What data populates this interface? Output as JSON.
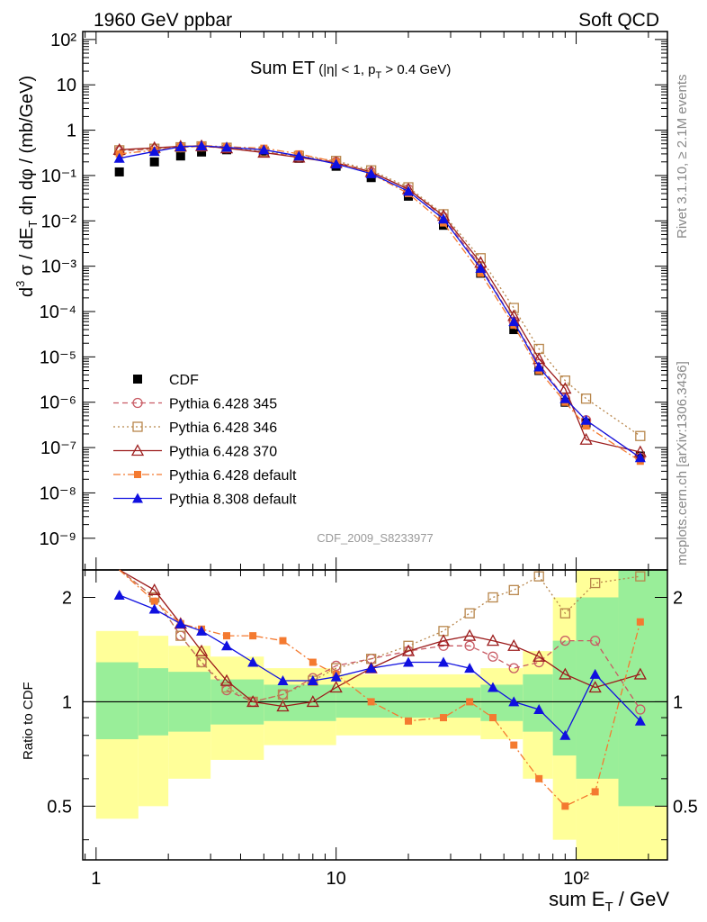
{
  "header": {
    "energy": "1960 GeV ppbar",
    "process": "Soft QCD"
  },
  "side_labels": {
    "rivet": "Rivet 3.1.10, ≥ 2.1M events",
    "mcplots": "mcplots.cern.ch [arXiv:1306.3436]"
  },
  "watermark": "CDF_2009_S8233977",
  "chart_data": [
    {
      "type": "scatter",
      "panel": "main",
      "title": "Sum ET (|η| < 1, pT > 0.4 GeV)",
      "title_main": "Sum ET",
      "title_sub": "(|η| < 1, p",
      "title_sub_index": "T",
      "title_sub_tail": " > 0.4 GeV)",
      "ylabel": "d³σ / dE_T dη dφ / (mb/GeV)",
      "ylabel_parts": {
        "d": "d",
        "exp": "3",
        "sigma": " σ / dE",
        "sub": "T",
        "rest": " dη dφ / (mb/GeV)"
      },
      "xlabel": "sum E_T / GeV",
      "xlabel_parts": {
        "main": "sum E",
        "sub": "T",
        "rest": " / GeV"
      },
      "x_scale": "log",
      "y_scale": "log",
      "xlim": [
        0.88,
        240
      ],
      "ylim": [
        2e-10,
        150
      ],
      "x_tick_labels": [
        "1",
        "10",
        "10²"
      ],
      "y_tick_labels": [
        "10⁻⁹",
        "10⁻⁸",
        "10⁻⁷",
        "10⁻⁶",
        "10⁻⁵",
        "10⁻⁴",
        "10⁻³",
        "10⁻²",
        "10⁻¹",
        "1",
        "10",
        "10²"
      ],
      "legend_position": "bottom-left",
      "series": [
        {
          "name": "CDF",
          "color": "#000000",
          "marker": "square-filled",
          "line": "none",
          "x": [
            1.25,
            1.75,
            2.25,
            2.75,
            3.5,
            5,
            7,
            10,
            14,
            20,
            28,
            40,
            55,
            70,
            90,
            110,
            185
          ],
          "y": [
            0.12,
            0.2,
            0.27,
            0.33,
            0.37,
            0.33,
            0.24,
            0.16,
            0.09,
            0.035,
            0.008,
            0.0007,
            4e-05,
            5e-06,
            1e-06,
            3.5e-07,
            6.5e-08
          ]
        },
        {
          "name": "Pythia 6.428 345",
          "color": "#c85a63",
          "marker": "circle-open",
          "line": "dashed",
          "x": [
            1.25,
            1.75,
            2.25,
            2.75,
            3.5,
            5,
            7,
            10,
            14,
            20,
            28,
            40,
            55,
            70,
            90,
            110,
            185
          ],
          "y": [
            0.35,
            0.38,
            0.42,
            0.44,
            0.4,
            0.33,
            0.26,
            0.2,
            0.12,
            0.05,
            0.012,
            0.001,
            6e-05,
            7e-06,
            1.2e-06,
            4e-07,
            6e-08
          ]
        },
        {
          "name": "Pythia 6.428 346",
          "color": "#b8864b",
          "marker": "square-open",
          "line": "dotted",
          "x": [
            1.25,
            1.75,
            2.25,
            2.75,
            3.5,
            5,
            7,
            10,
            14,
            20,
            28,
            40,
            55,
            70,
            90,
            110,
            185
          ],
          "y": [
            0.36,
            0.39,
            0.42,
            0.44,
            0.41,
            0.34,
            0.27,
            0.21,
            0.13,
            0.055,
            0.014,
            0.0015,
            0.00012,
            1.5e-05,
            3e-06,
            1.2e-06,
            1.8e-07
          ]
        },
        {
          "name": "Pythia 6.428 370",
          "color": "#9c1c1c",
          "marker": "triangle-open",
          "line": "solid",
          "x": [
            1.25,
            1.75,
            2.25,
            2.75,
            3.5,
            5,
            7,
            10,
            14,
            20,
            28,
            40,
            55,
            70,
            90,
            110,
            185
          ],
          "y": [
            0.37,
            0.41,
            0.44,
            0.45,
            0.4,
            0.32,
            0.25,
            0.19,
            0.12,
            0.05,
            0.013,
            0.0012,
            8e-05,
            9e-06,
            2e-06,
            1.5e-07,
            8e-08
          ]
        },
        {
          "name": "Pythia 6.428 default",
          "color": "#f47a30",
          "marker": "square-filled-small",
          "line": "dashdot",
          "x": [
            1.25,
            1.75,
            2.25,
            2.75,
            3.5,
            5,
            7,
            10,
            14,
            20,
            28,
            40,
            55,
            70,
            90,
            110,
            185
          ],
          "y": [
            0.3,
            0.36,
            0.43,
            0.46,
            0.43,
            0.4,
            0.3,
            0.2,
            0.11,
            0.04,
            0.009,
            0.0007,
            5e-05,
            5e-06,
            1e-06,
            3e-07,
            5e-08
          ]
        },
        {
          "name": "Pythia 8.308 default",
          "color": "#1010e0",
          "marker": "triangle-filled",
          "line": "solid",
          "x": [
            1.25,
            1.75,
            2.25,
            2.75,
            3.5,
            5,
            7,
            10,
            14,
            20,
            28,
            40,
            55,
            70,
            90,
            110,
            185
          ],
          "y": [
            0.24,
            0.34,
            0.43,
            0.45,
            0.42,
            0.37,
            0.27,
            0.18,
            0.11,
            0.045,
            0.011,
            0.0009,
            6e-05,
            6e-06,
            1.2e-06,
            4e-07,
            6e-08
          ]
        }
      ]
    },
    {
      "type": "line",
      "panel": "ratio",
      "ylabel": "Ratio to CDF",
      "x_scale": "log",
      "y_scale": "log",
      "xlim": [
        0.88,
        240
      ],
      "ylim": [
        0.35,
        2.4
      ],
      "y_tick_labels": [
        "0.5",
        "1",
        "2"
      ],
      "reference": 1,
      "bands": {
        "x": [
          1.0,
          1.5,
          2.0,
          3.0,
          5.0,
          10.0,
          20.0,
          40.0,
          60.0,
          80.0,
          100.0,
          150.0,
          240.0
        ],
        "inner_low": [
          0.78,
          0.8,
          0.82,
          0.86,
          0.88,
          0.9,
          0.9,
          0.88,
          0.82,
          0.7,
          0.6,
          0.5,
          0.5
        ],
        "inner_high": [
          1.3,
          1.25,
          1.22,
          1.16,
          1.12,
          1.1,
          1.1,
          1.12,
          1.2,
          1.5,
          2.0,
          2.5,
          2.5
        ],
        "outer_low": [
          0.46,
          0.5,
          0.6,
          0.68,
          0.75,
          0.8,
          0.8,
          0.78,
          0.6,
          0.4,
          0.3,
          0.3,
          0.3
        ],
        "outer_high": [
          1.6,
          1.55,
          1.45,
          1.35,
          1.25,
          1.2,
          1.2,
          1.25,
          1.4,
          2.0,
          2.6,
          2.6,
          2.6
        ]
      },
      "series": [
        {
          "name": "Pythia 6.428 345",
          "color": "#c85a63",
          "x": [
            1.25,
            1.75,
            2.25,
            2.75,
            3.5,
            4.5,
            6,
            8,
            10,
            14,
            20,
            28,
            36,
            45,
            55,
            70,
            90,
            120,
            185
          ],
          "y": [
            2.9,
            2.0,
            1.55,
            1.3,
            1.08,
            1.0,
            1.05,
            1.17,
            1.27,
            1.33,
            1.4,
            1.45,
            1.45,
            1.35,
            1.25,
            1.3,
            1.5,
            1.5,
            0.95
          ]
        },
        {
          "name": "Pythia 6.428 346",
          "color": "#b8864b",
          "x": [
            1.25,
            1.75,
            2.25,
            2.75,
            3.5,
            4.5,
            6,
            8,
            10,
            14,
            20,
            28,
            36,
            45,
            55,
            70,
            90,
            120,
            185
          ],
          "y": [
            3.0,
            2.0,
            1.55,
            1.3,
            1.1,
            1.0,
            1.05,
            1.15,
            1.25,
            1.33,
            1.45,
            1.6,
            1.8,
            2.0,
            2.1,
            2.3,
            1.8,
            2.2,
            2.3
          ]
        },
        {
          "name": "Pythia 6.428 370",
          "color": "#9c1c1c",
          "x": [
            1.25,
            1.75,
            2.25,
            2.75,
            3.5,
            4.5,
            6,
            8,
            10,
            14,
            20,
            28,
            36,
            45,
            55,
            70,
            90,
            120,
            185
          ],
          "y": [
            3.2,
            2.1,
            1.68,
            1.4,
            1.15,
            1.0,
            0.97,
            1.0,
            1.1,
            1.25,
            1.4,
            1.5,
            1.55,
            1.5,
            1.45,
            1.35,
            1.2,
            1.1,
            1.2
          ]
        },
        {
          "name": "Pythia 6.428 default",
          "color": "#f47a30",
          "x": [
            1.25,
            1.75,
            2.25,
            2.75,
            3.5,
            4.5,
            6,
            8,
            10,
            14,
            20,
            28,
            36,
            45,
            55,
            70,
            90,
            120,
            185
          ],
          "y": [
            2.5,
            1.95,
            1.68,
            1.62,
            1.55,
            1.55,
            1.5,
            1.3,
            1.2,
            1.0,
            0.88,
            0.9,
            1.0,
            0.9,
            0.75,
            0.6,
            0.5,
            0.55,
            1.7
          ]
        },
        {
          "name": "Pythia 8.308 default",
          "color": "#1010e0",
          "x": [
            1.25,
            1.75,
            2.25,
            2.75,
            3.5,
            4.5,
            6,
            8,
            10,
            14,
            20,
            28,
            36,
            45,
            55,
            70,
            90,
            120,
            185
          ],
          "y": [
            2.03,
            1.85,
            1.68,
            1.6,
            1.45,
            1.3,
            1.15,
            1.15,
            1.18,
            1.25,
            1.3,
            1.3,
            1.25,
            1.1,
            1.0,
            0.95,
            0.8,
            1.2,
            0.88
          ]
        }
      ]
    }
  ]
}
